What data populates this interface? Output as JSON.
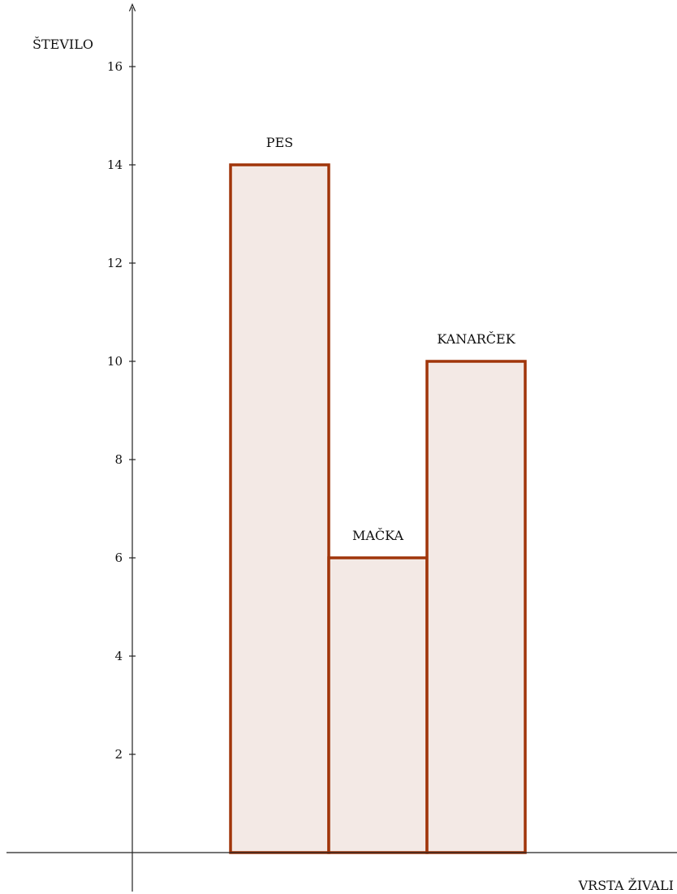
{
  "chart_data": {
    "type": "bar",
    "categories": [
      "PES",
      "MAČKA",
      "KANARČEK"
    ],
    "values": [
      14,
      6,
      10
    ],
    "xlabel": "VRSTA ŽIVALI",
    "ylabel": "ŠTEVILO",
    "yticks": [
      2,
      4,
      6,
      8,
      10,
      12,
      14,
      16
    ],
    "ylim": [
      0,
      17.5
    ],
    "bars_adjacent": true,
    "grid": false,
    "legend": "none",
    "colors": {
      "bar_fill": "#f3e9e5",
      "bar_stroke": "#a0350a",
      "axis": "#222222"
    }
  }
}
